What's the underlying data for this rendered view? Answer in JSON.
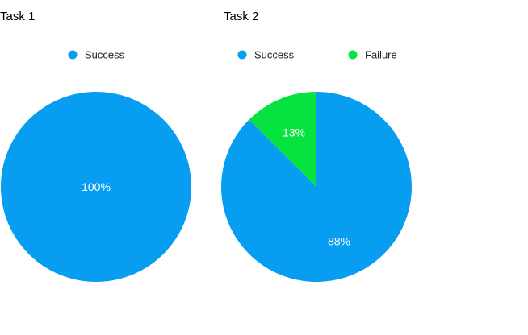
{
  "chart_data": [
    {
      "type": "pie",
      "title": "Task 1",
      "legend_placement": "top",
      "series": [
        {
          "name": "Success",
          "value": 100,
          "label": "100%",
          "color": "#079ef2"
        }
      ]
    },
    {
      "type": "pie",
      "title": "Task 2",
      "legend_placement": "top",
      "series": [
        {
          "name": "Success",
          "value": 87.5,
          "label": "88%",
          "color": "#079ef2"
        },
        {
          "name": "Failure",
          "value": 12.5,
          "label": "13%",
          "color": "#06e33f"
        }
      ]
    }
  ]
}
